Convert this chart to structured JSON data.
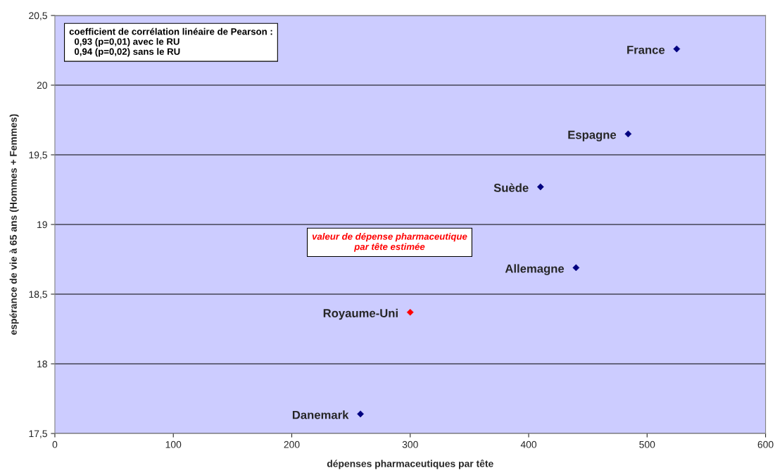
{
  "chart_data": {
    "type": "scatter",
    "xlabel": "dépenses pharmaceutiques par tête",
    "ylabel": "espérance de vie à 65 ans (Hommes + Femmes)",
    "xlim": [
      0,
      600
    ],
    "xticks": [
      0,
      100,
      200,
      300,
      400,
      500,
      600
    ],
    "ylim": [
      17.5,
      20.5
    ],
    "yticks": [
      {
        "value": 17.5,
        "label": "17,5"
      },
      {
        "value": 18,
        "label": "18"
      },
      {
        "value": 18.5,
        "label": "18,5"
      },
      {
        "value": 19,
        "label": "19"
      },
      {
        "value": 19.5,
        "label": "19,5"
      },
      {
        "value": 20,
        "label": "20"
      },
      {
        "value": 20.5,
        "label": "20,5"
      }
    ],
    "grid": "y",
    "legend": false,
    "marker": "diamond",
    "series": [
      {
        "name": "France",
        "color": "#000080",
        "x": [
          525
        ],
        "values": [
          20.26
        ]
      },
      {
        "name": "Espagne",
        "color": "#000080",
        "x": [
          484
        ],
        "values": [
          19.65
        ]
      },
      {
        "name": "Suède",
        "color": "#000080",
        "x": [
          410
        ],
        "values": [
          19.27
        ]
      },
      {
        "name": "Allemagne",
        "color": "#000080",
        "x": [
          440
        ],
        "values": [
          18.69
        ]
      },
      {
        "name": "Royaume-Uni",
        "color": "#ff0000",
        "x": [
          300
        ],
        "values": [
          18.37
        ]
      },
      {
        "name": "Danemark",
        "color": "#000080",
        "x": [
          258
        ],
        "values": [
          17.64
        ]
      }
    ],
    "annotations": [
      "coefficient de corrélation linéaire de Pearson :\n  0,93 (p=0,01) avec le RU\n  0,94 (p=0,02) sans le RU",
      "valeur de dépense pharmaceutique\npar tête estimée"
    ]
  }
}
